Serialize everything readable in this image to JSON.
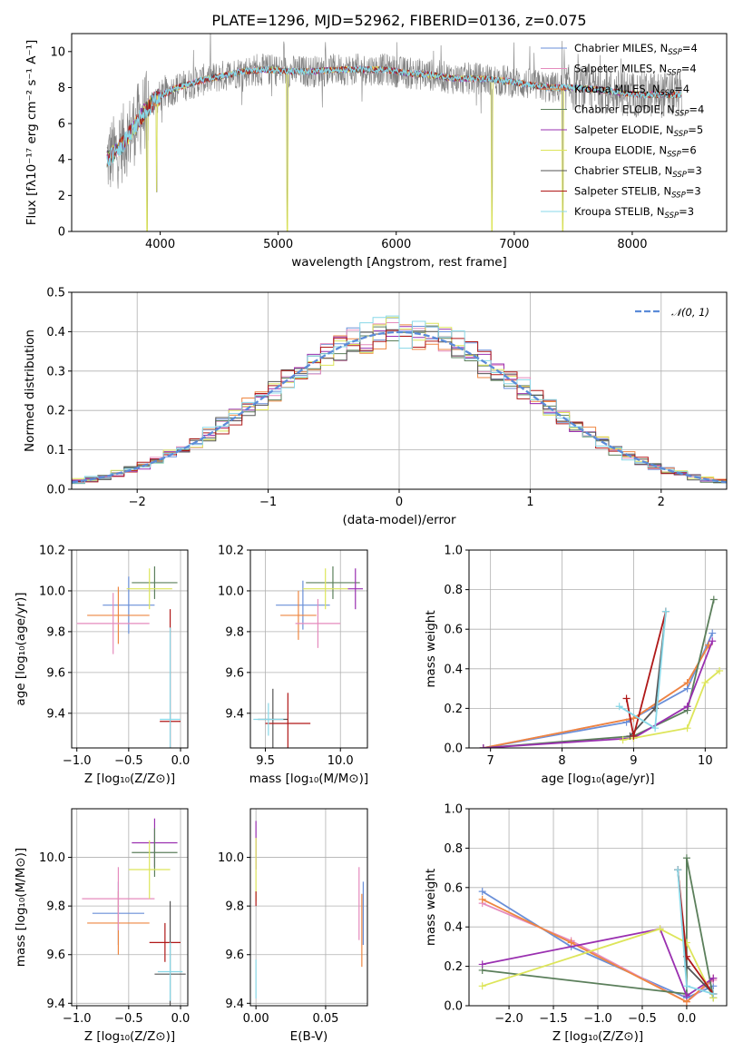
{
  "colors": {
    "chabrier_miles": "#6a8fd8",
    "salpeter_miles": "#e58bbd",
    "kroupa_miles": "#ee8640",
    "chabrier_elodie": "#5b7f5b",
    "salpeter_elodie": "#9a30b0",
    "kroupa_elodie": "#dde55a",
    "chabrier_stelib": "#555555",
    "salpeter_stelib": "#b01818",
    "kroupa_stelib": "#88d8e8",
    "data": "#808080",
    "normal": "#5b8bd8"
  },
  "chart_data": [
    {
      "id": "spectrum",
      "type": "line",
      "title": "PLATE=1296, MJD=52962, FIBERID=0136, z=0.075",
      "xlabel": "wavelength [Angstrom, rest frame]",
      "ylabel": "Flux [fλ10⁻¹⁷ erg cm⁻² s⁻¹ A⁻¹]",
      "xlim": [
        3250,
        8800
      ],
      "ylim": [
        0,
        11
      ],
      "xticks": [
        "4000",
        "5000",
        "6000",
        "7000",
        "8000"
      ],
      "yticks": [
        "0",
        "2",
        "4",
        "6",
        "8",
        "10"
      ],
      "legend_position": "top-right",
      "legend": [
        {
          "label": "Chabrier MILES, N",
          "sub": "SSP",
          "suffix": "=4"
        },
        {
          "label": "Salpeter MILES, N",
          "sub": "SSP",
          "suffix": "=4"
        },
        {
          "label": "Kroupa MILES, N",
          "sub": "SSP",
          "suffix": "=4"
        },
        {
          "label": "Chabrier ELODIE, N",
          "sub": "SSP",
          "suffix": "=4"
        },
        {
          "label": "Salpeter ELODIE, N",
          "sub": "SSP",
          "suffix": "=5"
        },
        {
          "label": "Kroupa ELODIE, N",
          "sub": "SSP",
          "suffix": "=6"
        },
        {
          "label": "Chabrier STELIB, N",
          "sub": "SSP",
          "suffix": "=3"
        },
        {
          "label": "Salpeter STELIB, N",
          "sub": "SSP",
          "suffix": "=3"
        },
        {
          "label": "Kroupa STELIB, N",
          "sub": "SSP",
          "suffix": "=3"
        }
      ],
      "continuum": {
        "x": [
          3550,
          3650,
          3750,
          3850,
          3950,
          4050,
          4150,
          4250,
          4350,
          4500,
          4700,
          4900,
          5100,
          5300,
          5500,
          5700,
          5900,
          6100,
          6300,
          6500,
          6700,
          6900,
          7100,
          7300,
          7500,
          7700,
          7900,
          8100,
          8300,
          8420
        ],
        "y": [
          4.0,
          4.6,
          5.5,
          6.5,
          7.3,
          7.7,
          8.0,
          8.2,
          8.4,
          8.6,
          8.9,
          9.0,
          8.9,
          8.9,
          9.0,
          9.0,
          9.0,
          8.8,
          8.7,
          8.5,
          8.5,
          8.4,
          8.2,
          8.0,
          8.0,
          7.9,
          7.7,
          7.6,
          7.6,
          7.6
        ]
      },
      "absorption_features": [
        {
          "x": 3890,
          "y": 0.0
        },
        {
          "x": 3970,
          "y": 2.2
        },
        {
          "x": 5078,
          "y": 0.0
        },
        {
          "x": 6810,
          "y": 0.0
        },
        {
          "x": 7410,
          "y": 0.0
        }
      ]
    },
    {
      "id": "residuals",
      "type": "histogram",
      "xlabel": "(data-model)/error",
      "ylabel": "Normed distribution",
      "xlim": [
        -2.5,
        2.5
      ],
      "ylim": [
        0,
        0.5
      ],
      "xticks": [
        "−2",
        "−1",
        "0",
        "1",
        "2"
      ],
      "yticks": [
        "0.0",
        "0.1",
        "0.2",
        "0.3",
        "0.4",
        "0.5"
      ],
      "legend": [
        {
          "label": "𝒩(0, 1)"
        }
      ],
      "legend_position": "top-right",
      "bin_width": 0.1
    },
    {
      "id": "age_vs_Z",
      "type": "errorbar",
      "xlabel": "Z [log₁₀(Z/Z⊙)]",
      "ylabel": "age  [log₁₀(age/yr)]",
      "xlim": [
        -1.05,
        0.07
      ],
      "ylim": [
        9.23,
        10.2
      ],
      "xticks": [
        "−1.0",
        "−0.5",
        "0.0"
      ],
      "yticks": [
        "9.4",
        "9.6",
        "9.8",
        "10.0",
        "10.2"
      ],
      "points": [
        {
          "s": "chabrier_miles",
          "x": -0.5,
          "xe": 0.25,
          "y": 9.93,
          "ye": 0.14
        },
        {
          "s": "kroupa_miles",
          "x": -0.6,
          "xe": 0.3,
          "y": 9.88,
          "ye": 0.14
        },
        {
          "s": "salpeter_miles",
          "x": -0.65,
          "xe": 0.35,
          "y": 9.84,
          "ye": 0.15
        },
        {
          "s": "chabrier_elodie",
          "x": -0.25,
          "xe": 0.22,
          "y": 10.04,
          "ye": 0.08
        },
        {
          "s": "kroupa_elodie",
          "x": -0.3,
          "xe": 0.22,
          "y": 10.01,
          "ye": 0.1
        },
        {
          "s": "salpeter_stelib",
          "x": -0.1,
          "xe": 0.1,
          "y": 9.36,
          "ye": 0.55
        },
        {
          "s": "kroupa_stelib",
          "x": -0.1,
          "xe": 0.1,
          "y": 9.37,
          "ye": 0.45
        }
      ]
    },
    {
      "id": "age_vs_mass",
      "type": "errorbar",
      "xlabel": "mass [log₁₀(M/M⊙)]",
      "xlim": [
        9.4,
        10.18
      ],
      "ylim": [
        9.23,
        10.2
      ],
      "xticks": [
        "9.5",
        "10.0"
      ],
      "yticks": [
        "9.4",
        "9.6",
        "9.8",
        "10.0",
        "10.2"
      ],
      "points": [
        {
          "s": "chabrier_miles",
          "x": 9.75,
          "xe": 0.18,
          "y": 9.93,
          "ye": 0.12
        },
        {
          "s": "kroupa_miles",
          "x": 9.72,
          "xe": 0.12,
          "y": 9.88,
          "ye": 0.12
        },
        {
          "s": "salpeter_miles",
          "x": 9.85,
          "xe": 0.15,
          "y": 9.84,
          "ye": 0.12
        },
        {
          "s": "chabrier_elodie",
          "x": 9.95,
          "xe": 0.18,
          "y": 10.04,
          "ye": 0.08
        },
        {
          "s": "kroupa_elodie",
          "x": 9.9,
          "xe": 0.15,
          "y": 10.01,
          "ye": 0.1
        },
        {
          "s": "salpeter_elodie",
          "x": 10.1,
          "xe": 0.05,
          "y": 10.01,
          "ye": 0.1
        },
        {
          "s": "chabrier_stelib",
          "x": 9.55,
          "xe": 0.1,
          "y": 9.37,
          "ye": 0.15
        },
        {
          "s": "salpeter_stelib",
          "x": 9.65,
          "xe": 0.15,
          "y": 9.35,
          "ye": 0.15
        },
        {
          "s": "kroupa_stelib",
          "x": 9.52,
          "xe": 0.1,
          "y": 9.37,
          "ye": 0.08
        }
      ]
    },
    {
      "id": "weight_vs_age",
      "type": "line",
      "xlabel": "age  [log₁₀(age/yr)]",
      "ylabel": "mass weight",
      "xlim": [
        6.7,
        10.3
      ],
      "ylim": [
        0,
        1
      ],
      "xticks": [
        "7",
        "8",
        "9",
        "10"
      ],
      "yticks": [
        "0.0",
        "0.2",
        "0.4",
        "0.6",
        "0.8",
        "1.0"
      ],
      "series": [
        {
          "s": "chabrier_miles",
          "x": [
            6.9,
            8.9,
            9.75,
            10.1
          ],
          "y": [
            0.0,
            0.13,
            0.3,
            0.58
          ]
        },
        {
          "s": "salpeter_miles",
          "x": [
            6.9,
            9.0,
            9.75,
            10.05
          ],
          "y": [
            0.0,
            0.15,
            0.33,
            0.52
          ]
        },
        {
          "s": "kroupa_miles",
          "x": [
            6.9,
            9.0,
            9.75,
            10.05
          ],
          "y": [
            0.0,
            0.15,
            0.33,
            0.52
          ]
        },
        {
          "s": "chabrier_elodie",
          "x": [
            6.9,
            9.0,
            9.75,
            10.12
          ],
          "y": [
            0.0,
            0.06,
            0.19,
            0.75
          ]
        },
        {
          "s": "salpeter_elodie",
          "x": [
            6.9,
            9.0,
            9.75,
            10.1
          ],
          "y": [
            0.0,
            0.05,
            0.21,
            0.54
          ]
        },
        {
          "s": "kroupa_elodie",
          "x": [
            8.85,
            9.0,
            9.75,
            10.0,
            10.2
          ],
          "y": [
            0.04,
            0.05,
            0.1,
            0.33,
            0.39
          ]
        },
        {
          "s": "chabrier_stelib",
          "x": [
            8.95,
            9.3,
            9.45
          ],
          "y": [
            0.06,
            0.2,
            0.69
          ]
        },
        {
          "s": "salpeter_stelib",
          "x": [
            8.9,
            9.0,
            9.45
          ],
          "y": [
            0.25,
            0.06,
            0.69
          ]
        },
        {
          "s": "kroupa_stelib",
          "x": [
            8.8,
            9.3,
            9.45
          ],
          "y": [
            0.21,
            0.1,
            0.69
          ]
        }
      ]
    },
    {
      "id": "mass_vs_Z",
      "type": "errorbar",
      "xlabel": "Z [log₁₀(Z/Z⊙)]",
      "ylabel": "mass [log₁₀(M/M⊙)]",
      "xlim": [
        -1.05,
        0.07
      ],
      "ylim": [
        9.39,
        10.2
      ],
      "xticks": [
        "−1.0",
        "−0.5",
        "0.0"
      ],
      "yticks": [
        "9.4",
        "9.6",
        "9.8",
        "10.0"
      ],
      "points": [
        {
          "s": "chabrier_miles",
          "x": -0.6,
          "xe": 0.25,
          "y": 9.77,
          "ye": 0.13
        },
        {
          "s": "kroupa_miles",
          "x": -0.6,
          "xe": 0.3,
          "y": 9.73,
          "ye": 0.13
        },
        {
          "s": "salpeter_miles",
          "x": -0.6,
          "xe": 0.35,
          "y": 9.83,
          "ye": 0.13
        },
        {
          "s": "salpeter_elodie",
          "x": -0.25,
          "xe": 0.22,
          "y": 10.06,
          "ye": 0.1
        },
        {
          "s": "chabrier_elodie",
          "x": -0.25,
          "xe": 0.22,
          "y": 10.02,
          "ye": 0.1
        },
        {
          "s": "kroupa_elodie",
          "x": -0.3,
          "xe": 0.2,
          "y": 9.95,
          "ye": 0.12
        },
        {
          "s": "salpeter_stelib",
          "x": -0.15,
          "xe": 0.15,
          "y": 9.65,
          "ye": 0.08
        },
        {
          "s": "chabrier_stelib",
          "x": -0.1,
          "xe": 0.15,
          "y": 9.52,
          "ye": 0.3
        },
        {
          "s": "kroupa_stelib",
          "x": -0.1,
          "xe": 0.12,
          "y": 9.53,
          "ye": 0.12
        }
      ]
    },
    {
      "id": "mass_vs_ebv",
      "type": "errorbar",
      "xlabel": "E(B-V)",
      "xlim": [
        -0.004,
        0.08
      ],
      "ylim": [
        9.39,
        10.2
      ],
      "xticks": [
        "0.00",
        "0.05"
      ],
      "yticks": [
        "9.4",
        "9.6",
        "9.8",
        "10.0"
      ],
      "points": [
        {
          "s": "salpeter_elodie",
          "x": 0.0,
          "xe": 0,
          "y": 10.05,
          "ye": 0.1
        },
        {
          "s": "kroupa_elodie",
          "x": 0.0,
          "xe": 0,
          "y": 9.95,
          "ye": 0.13
        },
        {
          "s": "salpeter_stelib",
          "x": 0.0,
          "xe": 0,
          "y": 9.83,
          "ye": 0.03
        },
        {
          "s": "kroupa_stelib",
          "x": 0.0,
          "xe": 0,
          "y": 9.5,
          "ye": 0.08
        },
        {
          "s": "salpeter_miles",
          "x": 0.074,
          "xe": 0,
          "y": 9.81,
          "ye": 0.15
        },
        {
          "s": "chabrier_miles",
          "x": 0.077,
          "xe": 0,
          "y": 9.77,
          "ye": 0.13
        },
        {
          "s": "kroupa_miles",
          "x": 0.076,
          "xe": 0,
          "y": 9.7,
          "ye": 0.15
        }
      ]
    },
    {
      "id": "weight_vs_Z",
      "type": "line",
      "xlabel": "Z [log₁₀(Z/Z⊙)]",
      "ylabel": "mass weight",
      "xlim": [
        -2.45,
        0.45
      ],
      "ylim": [
        0,
        1
      ],
      "xticks": [
        "−2.0",
        "−1.5",
        "−1.0",
        "−0.5",
        "0.0"
      ],
      "yticks": [
        "0.0",
        "0.2",
        "0.4",
        "0.6",
        "0.8",
        "1.0"
      ],
      "series": [
        {
          "s": "chabrier_miles",
          "x": [
            -2.3,
            -1.3,
            0.0,
            0.3
          ],
          "y": [
            0.58,
            0.3,
            0.04,
            0.1
          ]
        },
        {
          "s": "salpeter_miles",
          "x": [
            -2.3,
            -1.3,
            0.0,
            0.3
          ],
          "y": [
            0.52,
            0.33,
            0.02,
            0.13
          ]
        },
        {
          "s": "kroupa_miles",
          "x": [
            -2.3,
            -1.3,
            0.0,
            0.3
          ],
          "y": [
            0.54,
            0.32,
            0.02,
            0.14
          ]
        },
        {
          "s": "chabrier_elodie",
          "x": [
            -2.3,
            0.0,
            0.0,
            0.3
          ],
          "y": [
            0.18,
            0.06,
            0.75,
            0.04
          ]
        },
        {
          "s": "salpeter_elodie",
          "x": [
            -2.3,
            -0.3,
            0.0,
            0.3
          ],
          "y": [
            0.21,
            0.39,
            0.05,
            0.14
          ]
        },
        {
          "s": "kroupa_elodie",
          "x": [
            -2.3,
            -0.3,
            0.0,
            0.3
          ],
          "y": [
            0.1,
            0.39,
            0.32,
            0.04
          ]
        },
        {
          "s": "chabrier_stelib",
          "x": [
            -0.1,
            0.0,
            0.3
          ],
          "y": [
            0.69,
            0.2,
            0.06
          ]
        },
        {
          "s": "salpeter_stelib",
          "x": [
            -0.1,
            0.0,
            0.3
          ],
          "y": [
            0.69,
            0.25,
            0.06
          ]
        },
        {
          "s": "kroupa_stelib",
          "x": [
            -0.1,
            0.0,
            0.3
          ],
          "y": [
            0.69,
            0.1,
            0.06
          ]
        }
      ]
    }
  ]
}
